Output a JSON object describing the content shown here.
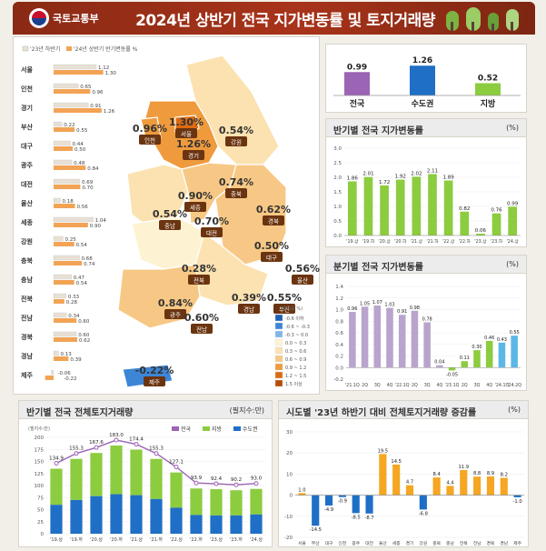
{
  "header": {
    "logo_text": "국토교통부",
    "title": "2024년 상반기 전국 지가변동률 및 토지거래량"
  },
  "colors": {
    "header_bg": "#a8331a",
    "bar_2023": "#e8e0d4",
    "bar_2024": "#f2a355",
    "purple": "#9b64b4",
    "blue": "#1f6fc6",
    "green": "#8ccc3f",
    "lightpurple": "#b8a4cc",
    "lightblue": "#5bb8e6",
    "orange": "#f5a623"
  },
  "region_bars": {
    "legend": [
      "'23년 하반기",
      "'24년 상반기",
      "반기변동률 %"
    ],
    "rows": [
      {
        "name": "서울",
        "h2023": 1.12,
        "h2024": 1.3
      },
      {
        "name": "인천",
        "h2023": 0.65,
        "h2024": 0.96
      },
      {
        "name": "경기",
        "h2023": 0.91,
        "h2024": 1.26
      },
      {
        "name": "부산",
        "h2023": 0.22,
        "h2024": 0.55
      },
      {
        "name": "대구",
        "h2023": 0.44,
        "h2024": 0.5
      },
      {
        "name": "광주",
        "h2023": 0.48,
        "h2024": 0.84
      },
      {
        "name": "대전",
        "h2023": 0.69,
        "h2024": 0.7
      },
      {
        "name": "울산",
        "h2023": 0.18,
        "h2024": 0.56
      },
      {
        "name": "세종",
        "h2023": 1.04,
        "h2024": 0.9
      },
      {
        "name": "강원",
        "h2023": 0.25,
        "h2024": 0.54
      },
      {
        "name": "충북",
        "h2023": 0.68,
        "h2024": 0.74
      },
      {
        "name": "충남",
        "h2023": 0.47,
        "h2024": 0.54
      },
      {
        "name": "전북",
        "h2023": 0.33,
        "h2024": 0.28
      },
      {
        "name": "전남",
        "h2023": 0.34,
        "h2024": 0.6
      },
      {
        "name": "경북",
        "h2023": 0.6,
        "h2024": 0.62
      },
      {
        "name": "경남",
        "h2023": 0.13,
        "h2024": 0.39
      },
      {
        "name": "제주",
        "h2023": -0.06,
        "h2024": -0.22
      }
    ]
  },
  "map": {
    "regions": [
      {
        "name": "서울",
        "value": "1.30"
      },
      {
        "name": "인천",
        "value": "0.96"
      },
      {
        "name": "경기",
        "value": "1.26"
      },
      {
        "name": "강원",
        "value": "0.54"
      },
      {
        "name": "충북",
        "value": "0.74"
      },
      {
        "name": "세종",
        "value": "0.90"
      },
      {
        "name": "충남",
        "value": "0.54"
      },
      {
        "name": "대전",
        "value": "0.70"
      },
      {
        "name": "경북",
        "value": "0.62"
      },
      {
        "name": "대구",
        "value": "0.50"
      },
      {
        "name": "울산",
        "value": "0.56"
      },
      {
        "name": "전북",
        "value": "0.28"
      },
      {
        "name": "경남",
        "value": "0.39"
      },
      {
        "name": "부산",
        "value": "0.55"
      },
      {
        "name": "광주",
        "value": "0.84"
      },
      {
        "name": "전남",
        "value": "0.60"
      },
      {
        "name": "제주",
        "value": "-0.22"
      }
    ],
    "legend_title": "(변동률 %)",
    "legend": [
      {
        "label": "-0.6 이하",
        "color": "#1f5fb4"
      },
      {
        "label": "-0.6 ~ -0.3",
        "color": "#3d86d6"
      },
      {
        "label": "-0.3 ~ 0.0",
        "color": "#7fb6ea"
      },
      {
        "label": "0.0 ~ 0.3",
        "color": "#fdf3d2"
      },
      {
        "label": "0.3 ~ 0.6",
        "color": "#fbe2b0"
      },
      {
        "label": "0.6 ~ 0.9",
        "color": "#f7c885"
      },
      {
        "label": "0.9 ~ 1.2",
        "color": "#ef9a3d"
      },
      {
        "label": "1.2 ~ 1.5",
        "color": "#dc6a12"
      },
      {
        "label": "1.5 이상",
        "color": "#b84a06"
      }
    ]
  },
  "chart_data": [
    {
      "id": "summary",
      "type": "bar",
      "categories": [
        "전국",
        "수도권",
        "지방"
      ],
      "values": [
        0.99,
        1.26,
        0.52
      ],
      "colors": [
        "#9b64b4",
        "#1f6fc6",
        "#8ccc3f"
      ]
    },
    {
      "id": "half_year_change",
      "type": "bar",
      "title": "반기별 전국 지가변동률",
      "unit": "(%)",
      "categories": [
        "'19.상",
        "'19.하",
        "'20.상",
        "'20.하",
        "'21.상",
        "'21.하",
        "'22.상",
        "'22.하",
        "'23.상",
        "'23.하",
        "'24.상"
      ],
      "values": [
        1.86,
        2.01,
        1.72,
        1.92,
        2.02,
        2.11,
        1.89,
        0.82,
        0.06,
        0.76,
        0.99
      ],
      "ylim": [
        0,
        3.0
      ],
      "yticks": [
        "0.0",
        "0.5",
        "1.0",
        "1.5",
        "2.0",
        "2.5",
        "3.0"
      ]
    },
    {
      "id": "quarter_change",
      "type": "bar",
      "title": "분기별 전국 지가변동률",
      "unit": "(%)",
      "categories": [
        "'21.1Q",
        "2Q",
        "3Q",
        "4Q",
        "'22.1Q",
        "2Q",
        "3Q",
        "4Q",
        "'23.1Q",
        "2Q",
        "3Q",
        "4Q",
        "'24.1Q",
        "'24.2Q"
      ],
      "values": [
        0.96,
        1.05,
        1.07,
        1.03,
        0.91,
        0.98,
        0.78,
        0.04,
        -0.05,
        0.11,
        0.3,
        0.46,
        0.43,
        0.55
      ],
      "ylim": [
        -0.2,
        1.4
      ],
      "yticks": [
        "-0.2",
        "0.0",
        "0.2",
        "0.4",
        "0.6",
        "0.8",
        "1.0",
        "1.2",
        "1.4"
      ]
    },
    {
      "id": "transaction_volume",
      "type": "bar",
      "title": "반기별 전국 전체토지거래량",
      "unit": "(필지수:만)",
      "axis_unit": "(필지수:만)",
      "legend": [
        "전국",
        "지방",
        "수도권"
      ],
      "categories": [
        "'19.상",
        "'19.하",
        "'20.상",
        "'20.하",
        "'21.상",
        "'21.하",
        "'22.상",
        "'22.하",
        "'23.상",
        "'23.하",
        "'24.상"
      ],
      "series": [
        {
          "name": "전국",
          "values": [
            134.9,
            155.3,
            167.6,
            183.0,
            174.4,
            155.3,
            127.1,
            93.9,
            92.4,
            90.2,
            93.0
          ]
        },
        {
          "name": "수도권",
          "values": [
            60,
            70,
            78,
            82,
            80,
            72,
            54,
            39,
            38,
            38,
            40
          ]
        }
      ],
      "ylim": [
        0,
        200
      ],
      "yticks": [
        "0",
        "25",
        "50",
        "75",
        "100",
        "125",
        "150",
        "175",
        "200"
      ]
    },
    {
      "id": "regional_volume_change",
      "type": "bar",
      "title": "시도별 '23년 하반기 대비 전체토지거래량 증감률",
      "unit": "(%)",
      "categories": [
        "서울",
        "부산",
        "대구",
        "인천",
        "광주",
        "대전",
        "울산",
        "세종",
        "경기",
        "강원",
        "충북",
        "충남",
        "전북",
        "전남",
        "경북",
        "경남",
        "제주"
      ],
      "values": [
        1.0,
        -14.5,
        -4.9,
        -0.9,
        -8.5,
        -8.7,
        19.5,
        14.5,
        4.7,
        -6.8,
        8.4,
        4.4,
        11.9,
        8.8,
        8.9,
        8.2,
        -1.0
      ],
      "ylim": [
        -20,
        30
      ],
      "yticks": [
        "-20",
        "-10",
        "0",
        "10",
        "20",
        "30"
      ]
    }
  ]
}
